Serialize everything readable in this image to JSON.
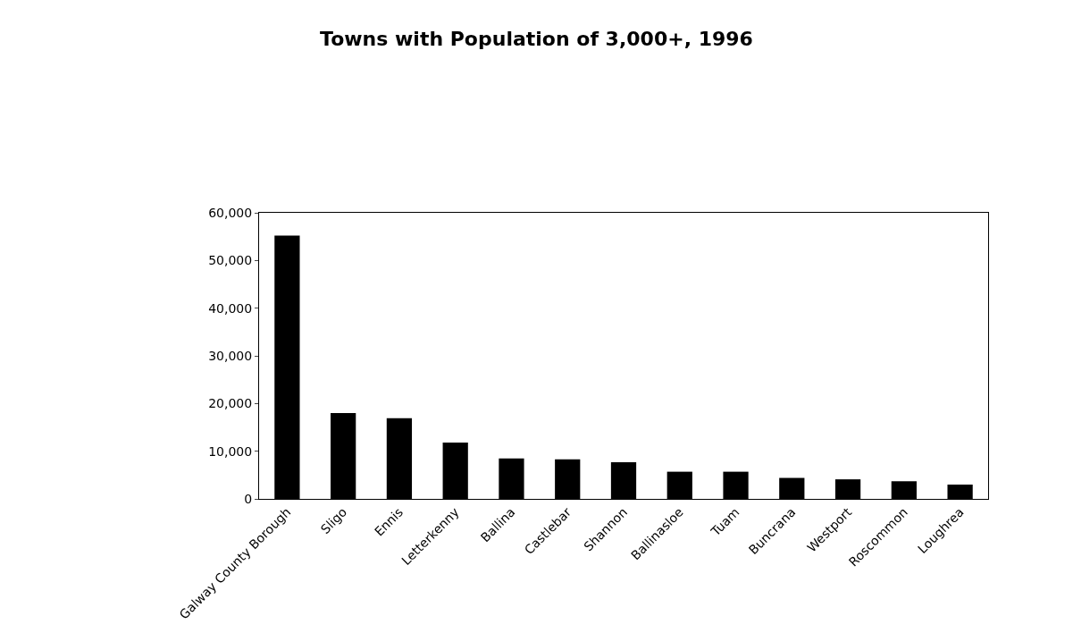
{
  "chart_data": {
    "type": "bar",
    "title": "Towns with Population of 3,000+, 1996",
    "categories": [
      "Galway County Borough",
      "Sligo",
      "Ennis",
      "Letterkenny",
      "Ballina",
      "Castlebar",
      "Shannon",
      "Ballinasloe",
      "Tuam",
      "Buncrana",
      "Westport",
      "Roscommon",
      "Loughrea"
    ],
    "values": [
      55200,
      18000,
      16900,
      11800,
      8500,
      8300,
      7700,
      5700,
      5700,
      4400,
      4100,
      3700,
      3000
    ],
    "color": "#000000",
    "ylim": [
      0,
      60000
    ],
    "yticks": [
      {
        "value": 0,
        "label": "0"
      },
      {
        "value": 10000,
        "label": "10,000"
      },
      {
        "value": 20000,
        "label": "20,000"
      },
      {
        "value": 30000,
        "label": "30,000"
      },
      {
        "value": 40000,
        "label": "40,000"
      },
      {
        "value": 50000,
        "label": "50,000"
      },
      {
        "value": 60000,
        "label": "60,000"
      }
    ],
    "grid": false
  }
}
